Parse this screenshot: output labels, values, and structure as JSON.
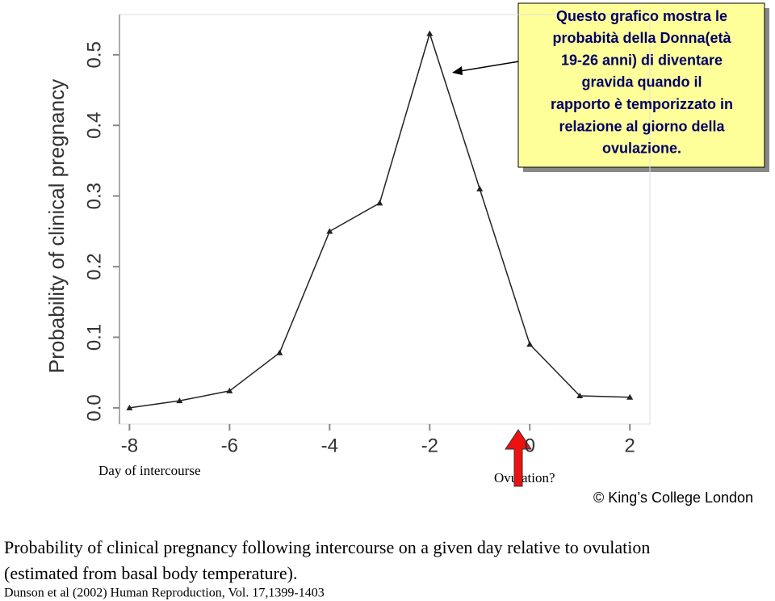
{
  "chart_data": {
    "type": "line",
    "ylabel": "Probability of clinical pregnancy",
    "xlabel": "Day of intercourse",
    "x": [
      -8,
      -7,
      -6,
      -5,
      -4,
      -3,
      -2,
      -1,
      0,
      1,
      2
    ],
    "values": [
      0.0,
      0.01,
      0.024,
      0.078,
      0.25,
      0.29,
      0.53,
      0.31,
      0.09,
      0.017,
      0.015
    ],
    "color": "#222222",
    "xlim": [
      -8.2,
      2.4
    ],
    "xticks": [
      -8,
      -6,
      -4,
      -2,
      0,
      2
    ],
    "ylim": [
      -0.023,
      0.557
    ],
    "yticks": [
      {
        "value": 0,
        "label": "0.0"
      },
      0.1,
      0.2,
      0.3,
      0.4,
      0.5
    ],
    "marker_label": "Ovulation?",
    "annotation": [
      "Questo grafico mostra le",
      "probabità della Donna(età",
      "19-26 anni) di diventare",
      "gravida quando il",
      "rapporto è temporizzato in",
      "relazione al giorno della",
      "ovulazione."
    ]
  },
  "credit": "© King’s College London",
  "caption": [
    "Probability of clinical pregnancy following intercourse on a given day relative to ovulation",
    "(estimated from basal body temperature)."
  ],
  "reference": "Dunson et al (2002) Human Reproduction, Vol. 17,1399-1403"
}
